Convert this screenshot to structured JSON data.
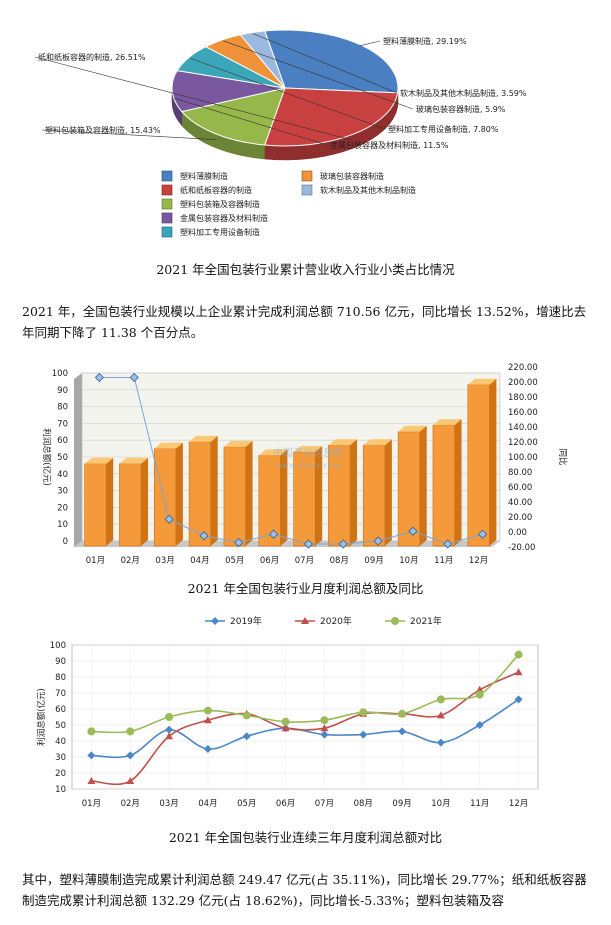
{
  "figure1": {
    "caption": "2021 年全国包装行业累计营业收入行业小类占比情况",
    "chart_data": {
      "type": "pie",
      "categories": [
        "塑料薄膜制造",
        "纸和纸板容器的制造",
        "塑料包装箱及容器制造",
        "金属包装容器及材料制造",
        "塑料加工专用设备制造",
        "玻璃包装容器制造",
        "软木制品及其他木制品制造"
      ],
      "values": [
        29.19,
        26.51,
        15.43,
        11.5,
        7.8,
        5.9,
        3.59
      ],
      "slice_labels": [
        "塑料薄膜制造, 29.19%",
        "纸和纸板容器的制造, 26.51%",
        "塑料包装箱及容器制造, 15.43%",
        "金属包装容器及材料制造, 11.5%",
        "塑料加工专用设备制造, 7.80%",
        "玻璃包装容器制造, 5.9%",
        "软木制品及其他木制品制造, 3.59%"
      ],
      "colors": [
        "#4a7fc1",
        "#c8403f",
        "#96b84a",
        "#7a58a0",
        "#3aa6b8",
        "#f0923a",
        "#9bb9df"
      ],
      "legend": {
        "placement": "bottom",
        "columns": [
          [
            "塑料薄膜制造",
            "纸和纸板容器的制造",
            "塑料包装箱及容器制造",
            "金属包装容器及材料制造",
            "塑料加工专用设备制造"
          ],
          [
            "玻璃包装容器制造",
            "软木制品及其他木制品制造"
          ]
        ]
      }
    }
  },
  "paragraph1": "2021 年，全国包装行业规模以上企业累计完成利润总额 710.56 亿元，同比增长 13.52%，增速比去年同期下降了 11.38 个百分点。",
  "figure2": {
    "caption": "2021 年全国包装行业月度利润总额及同比",
    "chart_data": {
      "type": "bar",
      "categories": [
        "01月",
        "02月",
        "03月",
        "04月",
        "05月",
        "06月",
        "07月",
        "08月",
        "09月",
        "10月",
        "11月",
        "12月"
      ],
      "series": [
        {
          "type": "bar",
          "values": [
            46,
            46,
            55,
            59,
            56,
            51,
            53,
            57,
            57,
            65,
            69,
            93
          ],
          "color": "#f59a3a"
        },
        {
          "type": "line",
          "values": [
            206,
            206,
            17,
            -5,
            -14,
            -3,
            -16,
            -16,
            -12,
            1,
            -16,
            -3
          ],
          "color": "#7aa6d6"
        }
      ],
      "ylabel": "利润总额(亿元)",
      "y2label": "同比",
      "ylim": [
        0,
        100
      ],
      "y2lim": [
        -20,
        220
      ],
      "yticks": [
        "0",
        "10",
        "20",
        "30",
        "40",
        "50",
        "60",
        "70",
        "80",
        "90",
        "100"
      ],
      "y2ticks": [
        "-20.00",
        "0.00",
        "20.00",
        "40.00",
        "60.00",
        "80.00",
        "100.00",
        "120.00",
        "140.00",
        "160.00",
        "180.00",
        "200.00",
        "220.00"
      ],
      "grid": true,
      "watermark": [
        "中国产业信息网",
        "www.chyxx.com"
      ]
    }
  },
  "figure3": {
    "caption": "2021 年全国包装行业连续三年月度利润总额对比",
    "chart_data": {
      "type": "line",
      "x": [
        "01月",
        "02月",
        "03月",
        "04月",
        "05月",
        "06月",
        "07月",
        "08月",
        "09月",
        "10月",
        "11月",
        "12月"
      ],
      "series": [
        {
          "name": "2019年",
          "values": [
            31,
            31,
            47,
            35,
            43,
            48,
            44,
            44,
            46,
            39,
            50,
            66
          ],
          "color": "#4a86c8",
          "marker": "diamond"
        },
        {
          "name": "2020年",
          "values": [
            15,
            15,
            43,
            53,
            57,
            48,
            48,
            57,
            57,
            56,
            72,
            83
          ],
          "color": "#c0504d",
          "marker": "triangle"
        },
        {
          "name": "2021年",
          "values": [
            46,
            46,
            55,
            59,
            56,
            52,
            53,
            58,
            57,
            66,
            69,
            94
          ],
          "color": "#9bbb59",
          "marker": "circle"
        }
      ],
      "ylabel": "利润总额(亿元)",
      "ylim": [
        10,
        100
      ],
      "yticks": [
        "10",
        "20",
        "30",
        "40",
        "50",
        "60",
        "70",
        "80",
        "90",
        "100"
      ],
      "legend_placement": "top",
      "grid": true
    }
  },
  "paragraph2": "其中，塑料薄膜制造完成累计利润总额 249.47 亿元(占 35.11%)，同比增长 29.77%；纸和纸板容器制造完成累计利润总额 132.29 亿元(占 18.62%)，同比增长-5.33%；塑料包装箱及容"
}
